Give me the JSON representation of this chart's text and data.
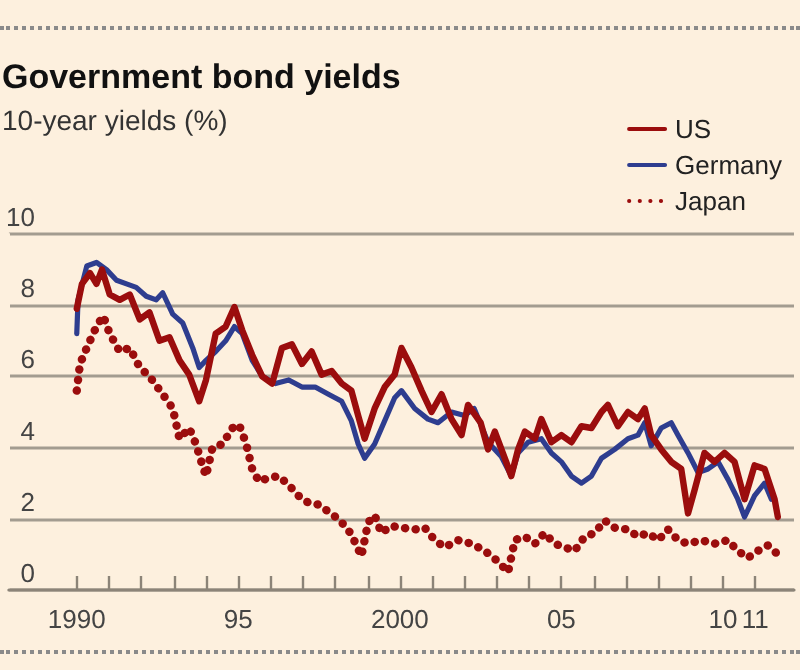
{
  "chart_data": {
    "type": "line",
    "title": "Government bond yields",
    "subtitle": "10-year yields (%)",
    "xlim": [
      1987.9,
      2012.2
    ],
    "xticks": [
      {
        "value": 1990,
        "label": "1990"
      },
      {
        "value": 1991,
        "label": null
      },
      {
        "value": 1992,
        "label": null
      },
      {
        "value": 1993,
        "label": null
      },
      {
        "value": 1994,
        "label": null
      },
      {
        "value": 1995,
        "label": "95"
      },
      {
        "value": 1996,
        "label": null
      },
      {
        "value": 1997,
        "label": null
      },
      {
        "value": 1998,
        "label": null
      },
      {
        "value": 1999,
        "label": null
      },
      {
        "value": 2000,
        "label": "2000"
      },
      {
        "value": 2001,
        "label": null
      },
      {
        "value": 2002,
        "label": null
      },
      {
        "value": 2003,
        "label": null
      },
      {
        "value": 2004,
        "label": null
      },
      {
        "value": 2005,
        "label": "05"
      },
      {
        "value": 2006,
        "label": null
      },
      {
        "value": 2007,
        "label": null
      },
      {
        "value": 2008,
        "label": null
      },
      {
        "value": 2009,
        "label": null
      },
      {
        "value": 2010,
        "label": "10"
      },
      {
        "value": 2011,
        "label": "11"
      }
    ],
    "ylim": [
      0,
      10
    ],
    "yticks": [
      0,
      2,
      4,
      6,
      8,
      10
    ],
    "grid": "y",
    "legend": "top right",
    "marker": "none",
    "series": [
      {
        "name": "US",
        "color": "#9b0d0d",
        "line_style": "solid",
        "x": [
          1990.0,
          1990.16,
          1990.41,
          1990.61,
          1990.78,
          1991.02,
          1991.33,
          1991.64,
          1991.95,
          1992.25,
          1992.56,
          1992.87,
          1993.18,
          1993.48,
          1993.79,
          1994.0,
          1994.3,
          1994.61,
          1994.88,
          1995.12,
          1995.43,
          1995.74,
          1996.05,
          1996.35,
          1996.66,
          1996.97,
          1997.27,
          1997.58,
          1997.89,
          1998.2,
          1998.5,
          1998.71,
          1998.91,
          1999.22,
          1999.53,
          1999.84,
          2000.05,
          2000.36,
          2000.67,
          2000.98,
          2001.29,
          2001.6,
          2001.91,
          2002.11,
          2002.5,
          2002.73,
          2002.94,
          2003.25,
          2003.45,
          2003.66,
          2003.87,
          2004.18,
          2004.38,
          2004.69,
          2005.0,
          2005.31,
          2005.62,
          2005.93,
          2006.24,
          2006.44,
          2006.75,
          2007.06,
          2007.37,
          2007.58,
          2007.78,
          2008.09,
          2008.4,
          2008.71,
          2008.92,
          2009.12,
          2009.43,
          2009.74,
          2010.05,
          2010.36,
          2010.67,
          2010.98,
          2011.29,
          2011.6,
          2011.7
        ],
        "values": [
          7.9,
          8.6,
          8.9,
          8.6,
          9.0,
          8.3,
          8.15,
          8.3,
          7.6,
          7.8,
          7.0,
          7.1,
          6.45,
          6.05,
          5.3,
          5.9,
          7.2,
          7.4,
          7.95,
          7.3,
          6.6,
          6.0,
          5.8,
          6.8,
          6.9,
          6.35,
          6.7,
          6.05,
          6.15,
          5.8,
          5.6,
          4.9,
          4.25,
          5.1,
          5.7,
          6.05,
          6.8,
          6.25,
          5.6,
          5.0,
          5.5,
          4.8,
          4.35,
          5.2,
          4.7,
          3.95,
          4.45,
          3.7,
          3.2,
          3.95,
          4.45,
          4.25,
          4.8,
          4.15,
          4.35,
          4.15,
          4.6,
          4.55,
          5.0,
          5.2,
          4.6,
          5.0,
          4.8,
          5.1,
          4.35,
          3.95,
          3.6,
          3.4,
          2.15,
          2.8,
          3.85,
          3.6,
          3.85,
          3.6,
          2.55,
          3.5,
          3.4,
          2.55,
          2.05
        ]
      },
      {
        "name": "Germany",
        "color": "#2e3d8f",
        "line_style": "solid",
        "x": [
          1990.0,
          1990.04,
          1990.31,
          1990.61,
          1990.92,
          1991.23,
          1991.54,
          1991.84,
          1992.15,
          1992.46,
          1992.66,
          1992.97,
          1993.28,
          1993.59,
          1993.79,
          1994.0,
          1994.3,
          1994.61,
          1994.88,
          1995.12,
          1995.43,
          1995.74,
          1996.15,
          1996.56,
          1996.97,
          1997.38,
          1997.79,
          1998.2,
          1998.5,
          1998.71,
          1998.91,
          1999.22,
          1999.53,
          1999.84,
          2000.05,
          2000.46,
          2000.87,
          2001.18,
          2001.6,
          2002.0,
          2002.3,
          2002.73,
          2003.14,
          2003.45,
          2003.66,
          2003.97,
          2004.38,
          2004.69,
          2005.0,
          2005.31,
          2005.62,
          2005.93,
          2006.24,
          2006.65,
          2007.06,
          2007.37,
          2007.58,
          2007.78,
          2008.09,
          2008.4,
          2008.61,
          2008.92,
          2009.23,
          2009.54,
          2009.85,
          2010.16,
          2010.46,
          2010.67,
          2010.98,
          2011.29,
          2011.5
        ],
        "values": [
          7.2,
          8.15,
          9.1,
          9.2,
          9.0,
          8.7,
          8.6,
          8.5,
          8.25,
          8.15,
          8.35,
          7.75,
          7.5,
          6.8,
          6.25,
          6.45,
          6.7,
          7.0,
          7.4,
          7.2,
          6.45,
          6.0,
          5.8,
          5.9,
          5.7,
          5.7,
          5.5,
          5.3,
          4.75,
          4.1,
          3.7,
          4.1,
          4.75,
          5.4,
          5.6,
          5.1,
          4.8,
          4.7,
          5.0,
          4.9,
          5.1,
          4.15,
          3.75,
          3.2,
          3.85,
          4.15,
          4.25,
          3.85,
          3.6,
          3.2,
          3.0,
          3.2,
          3.7,
          3.95,
          4.25,
          4.35,
          4.7,
          4.05,
          4.55,
          4.7,
          4.35,
          3.85,
          3.3,
          3.4,
          3.6,
          3.1,
          2.55,
          2.05,
          2.65,
          3.0,
          2.55
        ]
      },
      {
        "name": "Japan",
        "color": "#9b0d0d",
        "line_style": "dotted",
        "x": [
          1990.0,
          1990.1,
          1990.31,
          1990.61,
          1990.82,
          1991.02,
          1991.33,
          1991.64,
          1991.95,
          1992.25,
          1992.66,
          1992.97,
          1993.18,
          1993.48,
          1993.69,
          1993.89,
          1994.0,
          1994.2,
          1994.51,
          1994.82,
          1995.02,
          1995.23,
          1995.43,
          1995.64,
          1995.94,
          1996.25,
          1996.56,
          1996.86,
          1997.17,
          1997.48,
          1997.79,
          1998.09,
          1998.4,
          1998.61,
          1998.81,
          1999.02,
          1999.22,
          1999.43,
          1999.73,
          2000.05,
          2000.46,
          2000.77,
          2001.08,
          2001.39,
          2001.8,
          2002.22,
          2002.63,
          2003.04,
          2003.35,
          2003.56,
          2003.87,
          2004.18,
          2004.48,
          2004.79,
          2005.1,
          2005.41,
          2005.72,
          2006.03,
          2006.34,
          2006.65,
          2007.06,
          2007.37,
          2007.68,
          2008.0,
          2008.3,
          2008.61,
          2008.92,
          2009.33,
          2009.74,
          2010.15,
          2010.46,
          2010.77,
          2011.08,
          2011.39,
          2011.7
        ],
        "values": [
          5.6,
          6.35,
          6.8,
          7.4,
          7.7,
          7.2,
          6.7,
          6.8,
          6.25,
          6.0,
          5.5,
          5.1,
          4.25,
          4.55,
          4.1,
          3.5,
          3.2,
          4.0,
          4.1,
          4.55,
          4.65,
          4.15,
          3.4,
          3.05,
          3.15,
          3.2,
          2.95,
          2.65,
          2.45,
          2.4,
          2.2,
          2.0,
          1.7,
          1.35,
          0.95,
          1.9,
          2.1,
          1.6,
          1.8,
          1.75,
          1.7,
          1.75,
          1.4,
          1.2,
          1.4,
          1.3,
          1.1,
          0.8,
          0.5,
          1.4,
          1.5,
          1.3,
          1.6,
          1.3,
          1.2,
          1.1,
          1.5,
          1.6,
          1.95,
          1.75,
          1.7,
          1.5,
          1.6,
          1.4,
          1.7,
          1.4,
          1.3,
          1.4,
          1.3,
          1.4,
          1.1,
          0.9,
          1.1,
          1.25,
          1.0
        ]
      }
    ]
  }
}
